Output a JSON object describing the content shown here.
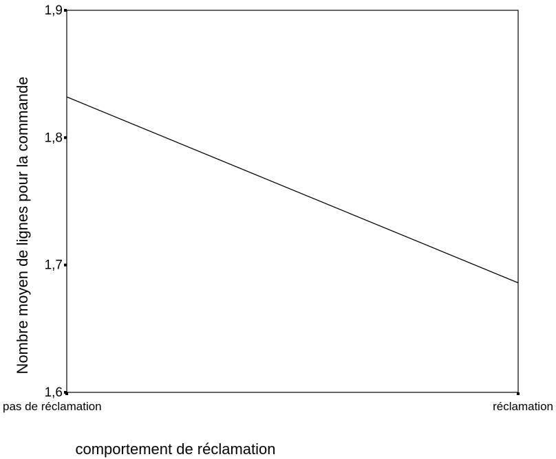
{
  "chart_data": {
    "type": "line",
    "categories": [
      "pas de réclamation",
      "réclamation"
    ],
    "series": [
      {
        "values": [
          1.832,
          1.686
        ]
      }
    ],
    "xlabel": "comportement de réclamation",
    "ylabel": "Nombre moyen de lignes pour la commande",
    "ylim": [
      1.6,
      1.9
    ],
    "yticks": [
      "1,6",
      "1,7",
      "1,8",
      "1,9"
    ],
    "grid": false
  },
  "colors": {
    "line": "#000000",
    "axis": "#000000",
    "background": "#ffffff"
  }
}
